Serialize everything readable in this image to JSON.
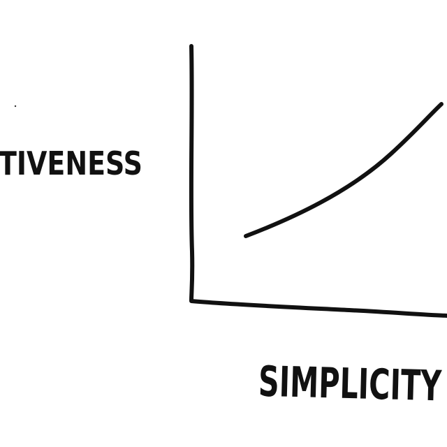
{
  "axes": {
    "y_label": "TIVENESS",
    "x_label": "SIMPLICITY"
  }
}
